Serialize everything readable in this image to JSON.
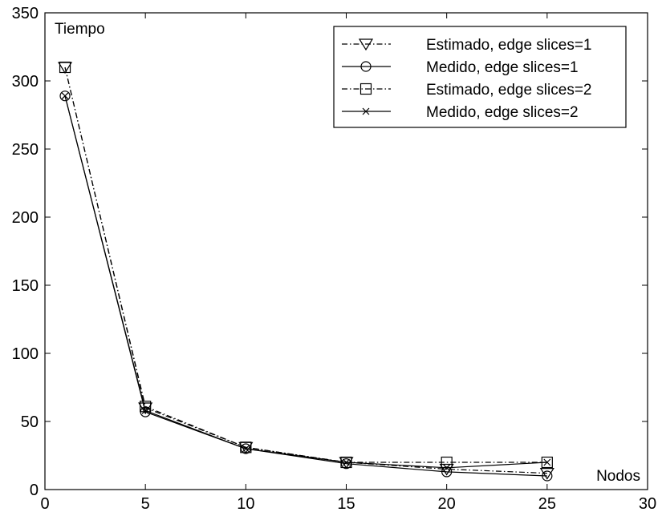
{
  "chart_data": {
    "type": "line",
    "title": "",
    "xlabel": "Nodos",
    "ylabel": "Tiempo",
    "xlim": [
      0,
      30
    ],
    "ylim": [
      0,
      350
    ],
    "xticks": [
      0,
      5,
      10,
      15,
      20,
      25,
      30
    ],
    "yticks": [
      0,
      50,
      100,
      150,
      200,
      250,
      300,
      350
    ],
    "grid": false,
    "legend_position": "top-right",
    "x": [
      1,
      5,
      10,
      15,
      20,
      25
    ],
    "series": [
      {
        "name": "Estimado, edge slices=1",
        "values": [
          310,
          60,
          31,
          20,
          15,
          12
        ],
        "line_style": "dashdot",
        "marker": "triangle-down",
        "color": "#000000"
      },
      {
        "name": "Medido, edge slices=1",
        "values": [
          289,
          57,
          30,
          19,
          13,
          10
        ],
        "line_style": "solid",
        "marker": "circle",
        "color": "#000000"
      },
      {
        "name": "Estimado, edge slices=2",
        "values": [
          310,
          61,
          31,
          20,
          20,
          20
        ],
        "line_style": "dashdot",
        "marker": "square",
        "color": "#000000"
      },
      {
        "name": "Medido, edge slices=2",
        "values": [
          289,
          58,
          30,
          20,
          16,
          20
        ],
        "line_style": "solid",
        "marker": "x",
        "color": "#000000"
      }
    ]
  }
}
